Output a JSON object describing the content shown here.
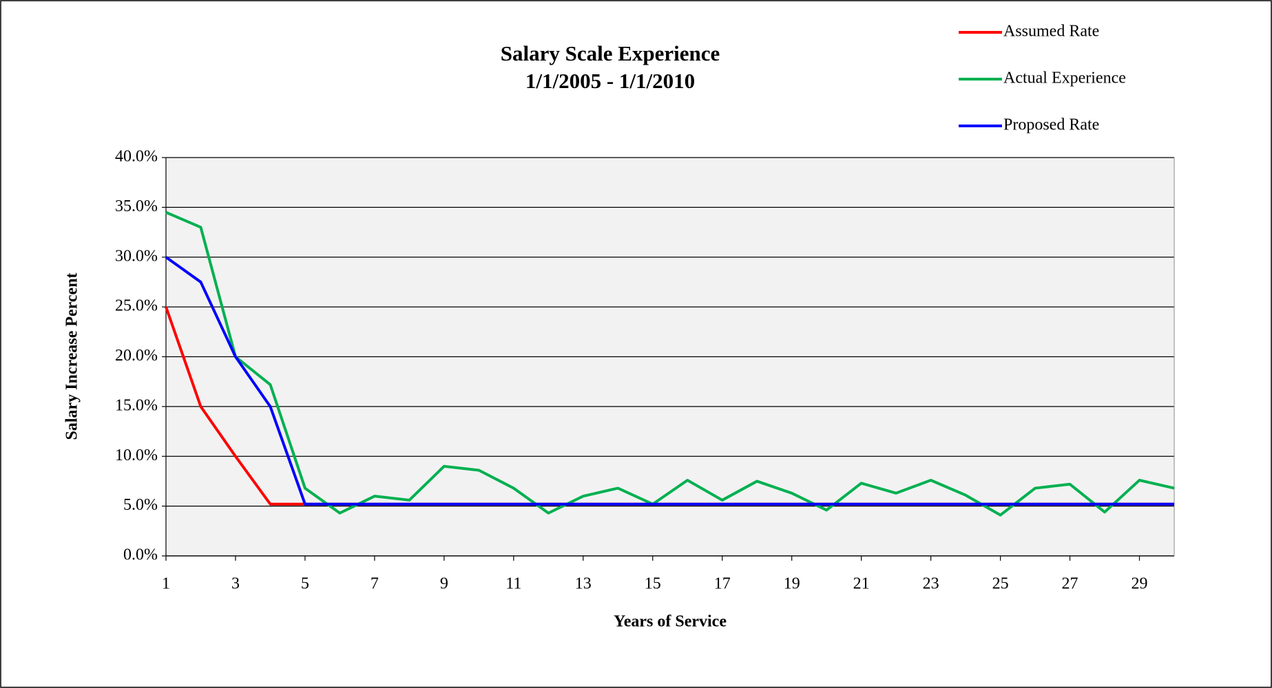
{
  "chart_data": {
    "type": "line",
    "title": "Salary Scale Experience",
    "subtitle": "1/1/2005 - 1/1/2010",
    "x_label": "Years of Service",
    "y_label": "Salary Increase Percent",
    "x": [
      1,
      2,
      3,
      4,
      5,
      6,
      7,
      8,
      9,
      10,
      11,
      12,
      13,
      14,
      15,
      16,
      17,
      18,
      19,
      20,
      21,
      22,
      23,
      24,
      25,
      26,
      27,
      28,
      29,
      30
    ],
    "xlim": [
      1,
      30
    ],
    "xticks": [
      1,
      3,
      5,
      7,
      9,
      11,
      13,
      15,
      17,
      19,
      21,
      23,
      25,
      27,
      29
    ],
    "ylim": [
      0,
      40
    ],
    "yticks": [
      {
        "value": 0,
        "label": "0.0%"
      },
      {
        "value": 5,
        "label": "5.0%"
      },
      {
        "value": 10,
        "label": "10.0%"
      },
      {
        "value": 15,
        "label": "15.0%"
      },
      {
        "value": 20,
        "label": "20.0%"
      },
      {
        "value": 25,
        "label": "25.0%"
      },
      {
        "value": 30,
        "label": "30.0%"
      },
      {
        "value": 35,
        "label": "35.0%"
      },
      {
        "value": 40,
        "label": "40.0%"
      }
    ],
    "grid": true,
    "legend": "top-right",
    "series": [
      {
        "name": "Assumed Rate",
        "color": "#ff0000",
        "values": [
          25,
          15,
          10,
          5.2,
          5.2,
          5.2,
          5.2,
          5.2,
          5.2,
          5.2,
          5.2,
          5.2,
          5.2,
          5.2,
          5.2,
          5.2,
          5.2,
          5.2,
          5.2,
          5.2,
          5.2,
          5.2,
          5.2,
          5.2,
          5.2,
          5.2,
          5.2,
          5.2,
          5.2,
          5.2
        ]
      },
      {
        "name": "Actual Experience",
        "color": "#00b050",
        "values": [
          34.5,
          33,
          20,
          17.2,
          6.8,
          4.3,
          6,
          5.6,
          9,
          8.6,
          6.8,
          4.3,
          6,
          6.8,
          5.2,
          7.6,
          5.6,
          7.5,
          6.3,
          4.6,
          7.3,
          6.3,
          7.6,
          6.1,
          4.1,
          6.8,
          7.2,
          4.4,
          7.6,
          6.8
        ]
      },
      {
        "name": "Proposed Rate",
        "color": "#0000ff",
        "values": [
          30,
          27.5,
          20,
          15,
          5.2,
          5.2,
          5.2,
          5.2,
          5.2,
          5.2,
          5.2,
          5.2,
          5.2,
          5.2,
          5.2,
          5.2,
          5.2,
          5.2,
          5.2,
          5.2,
          5.2,
          5.2,
          5.2,
          5.2,
          5.2,
          5.2,
          5.2,
          5.2,
          5.2,
          5.2
        ]
      }
    ]
  }
}
